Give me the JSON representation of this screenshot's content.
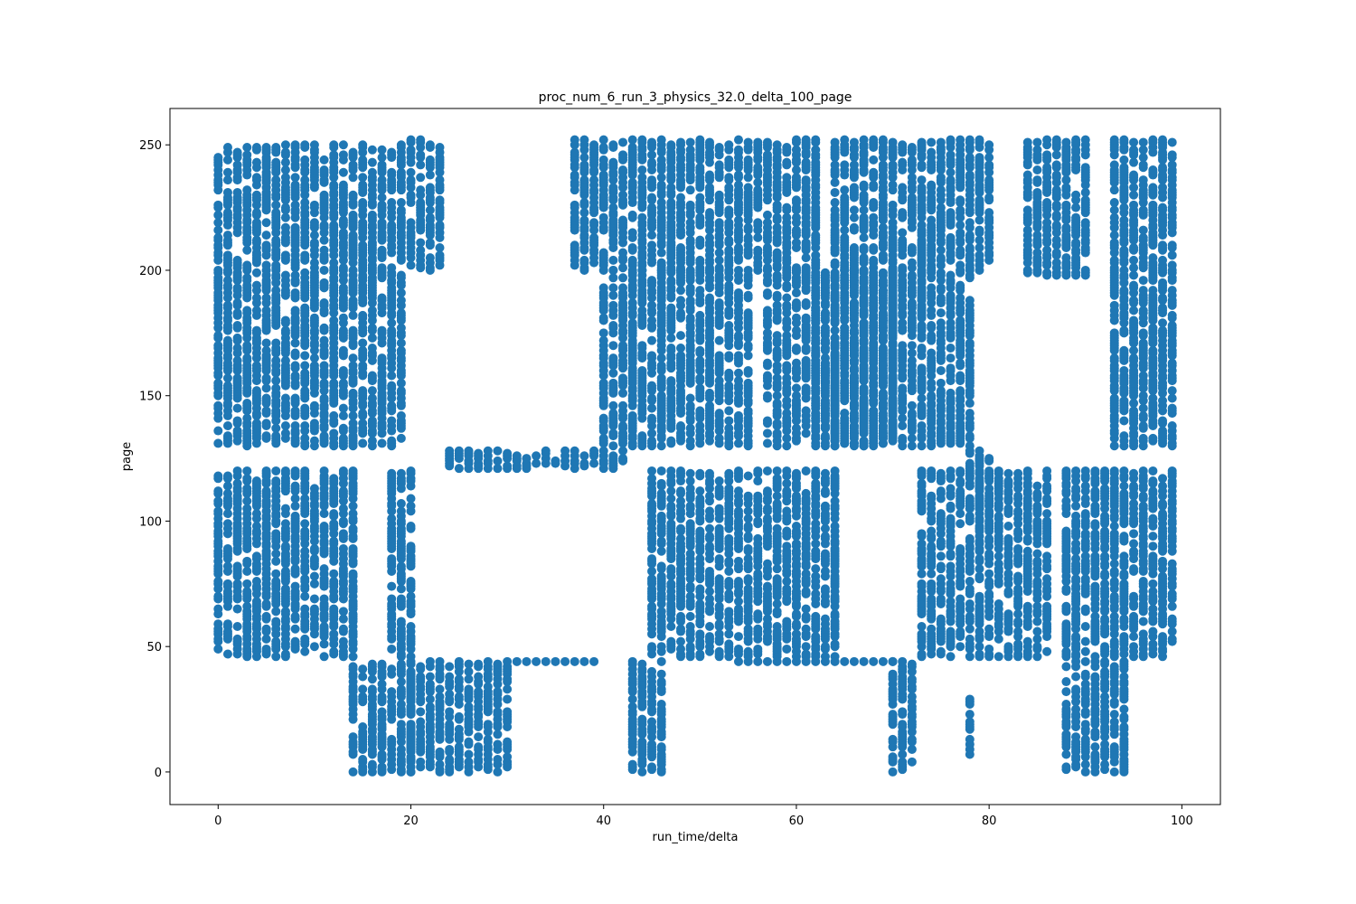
{
  "chart_data": {
    "type": "scatter",
    "title": "proc_num_6_run_3_physics_32.0_delta_100_page",
    "xlabel": "run_time/delta",
    "ylabel": "page",
    "xlim": [
      -5,
      104
    ],
    "ylim": [
      -13,
      264.5
    ],
    "xticks": [
      0,
      20,
      40,
      60,
      80,
      100
    ],
    "yticks": [
      0,
      50,
      100,
      150,
      200,
      250
    ],
    "grid": false,
    "legend": "none",
    "marker_color": "#1f77b4",
    "groups": [
      {
        "x": [
          0,
          19
        ],
        "y": [
          130,
          250
        ]
      },
      {
        "x": [
          20,
          23
        ],
        "y": [
          200,
          252
        ]
      },
      {
        "x": [
          0,
          14
        ],
        "y": [
          46,
          120
        ]
      },
      {
        "x": [
          18,
          20
        ],
        "y": [
          46,
          120
        ]
      },
      {
        "x": [
          14,
          20
        ],
        "y": [
          0,
          43
        ]
      },
      {
        "x": [
          20,
          30
        ],
        "y": [
          0,
          44
        ]
      },
      {
        "x": [
          30,
          39
        ],
        "y": [
          44,
          44
        ]
      },
      {
        "x": [
          24,
          42
        ],
        "y": [
          121,
          128
        ]
      },
      {
        "x": [
          37,
          62
        ],
        "y": [
          200,
          252
        ]
      },
      {
        "x": [
          40,
          55
        ],
        "y": [
          130,
          200
        ]
      },
      {
        "x": [
          57,
          70
        ],
        "y": [
          130,
          200
        ]
      },
      {
        "x": [
          45,
          64
        ],
        "y": [
          46,
          120
        ]
      },
      {
        "x": [
          43,
          46
        ],
        "y": [
          0,
          44
        ]
      },
      {
        "x": [
          64,
          80
        ],
        "y": [
          200,
          252
        ]
      },
      {
        "x": [
          62,
          78
        ],
        "y": [
          130,
          200
        ]
      },
      {
        "x": [
          54,
          70
        ],
        "y": [
          44,
          44
        ]
      },
      {
        "x": [
          70,
          72
        ],
        "y": [
          0,
          44
        ]
      },
      {
        "x": [
          73,
          86
        ],
        "y": [
          46,
          120
        ]
      },
      {
        "x": [
          78,
          80
        ],
        "y": [
          104,
          128
        ]
      },
      {
        "x": [
          78,
          78
        ],
        "y": [
          6,
          32
        ]
      },
      {
        "x": [
          84,
          90
        ],
        "y": [
          198,
          252
        ]
      },
      {
        "x": [
          88,
          94
        ],
        "y": [
          0,
          44
        ]
      },
      {
        "x": [
          88,
          99
        ],
        "y": [
          46,
          120
        ]
      },
      {
        "x": [
          93,
          99
        ],
        "y": [
          130,
          252
        ]
      }
    ]
  }
}
